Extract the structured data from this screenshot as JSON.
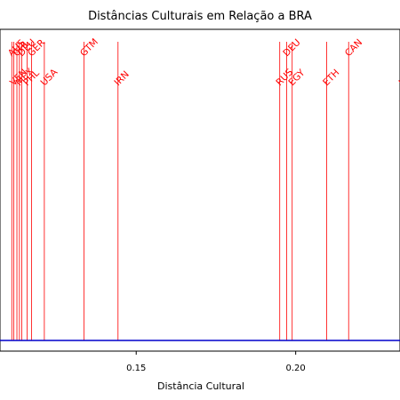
{
  "chart_data": {
    "type": "scatter",
    "title": "Distâncias Culturais em Relação a BRA",
    "xlabel": "Distância Cultural",
    "ylabel": "",
    "xlim": [
      0.1073,
      0.2327
    ],
    "xticks": [
      "0.15",
      "0.20"
    ],
    "xtick_values": [
      0.15,
      0.2
    ],
    "grid": false,
    "baseline_color": "#0000cc",
    "line_color": "#ff0000",
    "label_color": "#ff0000",
    "points": [
      {
        "label": "AUS",
        "x": 0.111,
        "pos": "up"
      },
      {
        "label": "VEN",
        "x": 0.1116,
        "pos": "down"
      },
      {
        "label": "CHL",
        "x": 0.1126,
        "pos": "up"
      },
      {
        "label": "MEX",
        "x": 0.1134,
        "pos": "down"
      },
      {
        "label": "DEU",
        "x": 0.1141,
        "pos": "up"
      },
      {
        "label": "PHL",
        "x": 0.1158,
        "pos": "down"
      },
      {
        "label": "GER",
        "x": 0.1172,
        "pos": "up"
      },
      {
        "label": "USA",
        "x": 0.1212,
        "pos": "down"
      },
      {
        "label": "GTM",
        "x": 0.1336,
        "pos": "up"
      },
      {
        "label": "IRN",
        "x": 0.1443,
        "pos": "down"
      },
      {
        "label": "RUS",
        "x": 0.195,
        "pos": "down"
      },
      {
        "label": "DEU",
        "x": 0.1972,
        "pos": "up"
      },
      {
        "label": "EGY",
        "x": 0.1989,
        "pos": "down"
      },
      {
        "label": "ETH",
        "x": 0.2097,
        "pos": "down"
      },
      {
        "label": "CAN",
        "x": 0.2166,
        "pos": "up"
      },
      {
        "label": "IND",
        "x": 0.2335,
        "pos": "down"
      }
    ]
  }
}
